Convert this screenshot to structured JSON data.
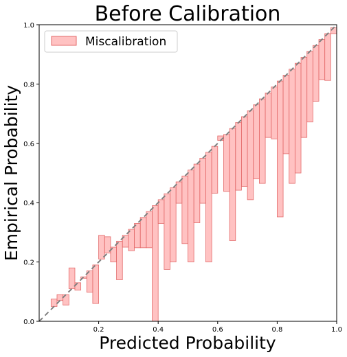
{
  "chart_data": {
    "type": "bar",
    "title": "Before Calibration",
    "xlabel": "Predicted Probability",
    "ylabel": "Empirical Probability",
    "xlim": [
      0.0,
      1.0
    ],
    "ylim": [
      0.0,
      1.0
    ],
    "xticks": [
      "0.2",
      "0.4",
      "0.6",
      "0.8",
      "1.0"
    ],
    "yticks": [
      "0.0",
      "0.2",
      "0.4",
      "0.6",
      "0.8",
      "1.0"
    ],
    "grid": false,
    "legend": {
      "position": "top-left",
      "entries": [
        "Miscalibration"
      ]
    },
    "bin_width": 0.02,
    "bin_centers": [
      0.05,
      0.07,
      0.09,
      0.11,
      0.13,
      0.15,
      0.17,
      0.19,
      0.21,
      0.23,
      0.25,
      0.27,
      0.29,
      0.31,
      0.33,
      0.35,
      0.37,
      0.39,
      0.41,
      0.43,
      0.45,
      0.47,
      0.49,
      0.51,
      0.53,
      0.55,
      0.57,
      0.59,
      0.61,
      0.63,
      0.65,
      0.67,
      0.69,
      0.71,
      0.73,
      0.75,
      0.77,
      0.79,
      0.81,
      0.83,
      0.85,
      0.87,
      0.89,
      0.91,
      0.93,
      0.95,
      0.97,
      0.99
    ],
    "accuracy": [
      0.075,
      0.09,
      0.055,
      0.18,
      0.105,
      0.145,
      0.098,
      0.06,
      0.29,
      0.285,
      0.2,
      0.14,
      0.25,
      0.238,
      0.248,
      0.248,
      0.248,
      0.0,
      0.33,
      0.175,
      0.2,
      0.398,
      0.262,
      0.2,
      0.332,
      0.398,
      0.2,
      0.432,
      0.625,
      0.438,
      0.272,
      0.442,
      0.455,
      0.41,
      0.48,
      0.465,
      0.62,
      0.615,
      0.352,
      0.565,
      0.465,
      0.5,
      0.62,
      0.672,
      0.742,
      0.815,
      0.812,
      0.97
    ],
    "reference_line": "y = x",
    "colors": {
      "bar_fill": "#ff9a9a",
      "bar_edge": "#e36a6a",
      "diagonal": "#808080"
    }
  }
}
